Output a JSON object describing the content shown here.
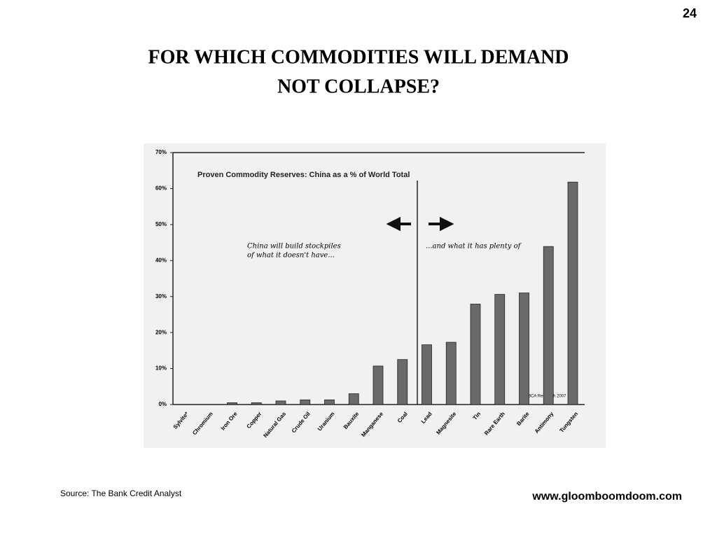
{
  "page_number": "24",
  "title": [
    "FOR  WHICH  COMMODITIES  WILL  DEMAND",
    "NOT  COLLAPSE?"
  ],
  "source": "Source: The Bank Credit Analyst",
  "website": "www.gloomboomdoom.com",
  "chart_data": {
    "type": "bar",
    "title": "Proven Commodity Reserves: China as a % of World Total",
    "categories": [
      "Sylvite*",
      "Chromium",
      "Iron Ore",
      "Copper",
      "Natural Gas",
      "Crude Oil",
      "Uranium",
      "Bauxite",
      "Manganese",
      "Coal",
      "Lead",
      "Magnesite",
      "Tin",
      "Rare Earth",
      "Barite",
      "Antimony",
      "Tungsten"
    ],
    "values": [
      0,
      0,
      0.5,
      0.5,
      1,
      1.3,
      1.3,
      3,
      10.7,
      12.5,
      16.6,
      17.3,
      27.9,
      30.6,
      31,
      43.9,
      61.8
    ],
    "color": "#6a6a6a",
    "ylim": [
      0,
      70
    ],
    "yticks": [
      {
        "value": 0,
        "label": "0%"
      },
      {
        "value": 10,
        "label": "10%"
      },
      {
        "value": 20,
        "label": "20%"
      },
      {
        "value": 30,
        "label": "30%"
      },
      {
        "value": 40,
        "label": "40%"
      },
      {
        "value": 50,
        "label": "50%"
      },
      {
        "value": 60,
        "label": "60%"
      },
      {
        "value": 70,
        "label": "70%"
      }
    ],
    "annotation_left": [
      "China will build stockpiles",
      "of what it doesn't have..."
    ],
    "annotation_right": "...and what it has plenty of",
    "copyright": "© BCA Research 2007"
  }
}
